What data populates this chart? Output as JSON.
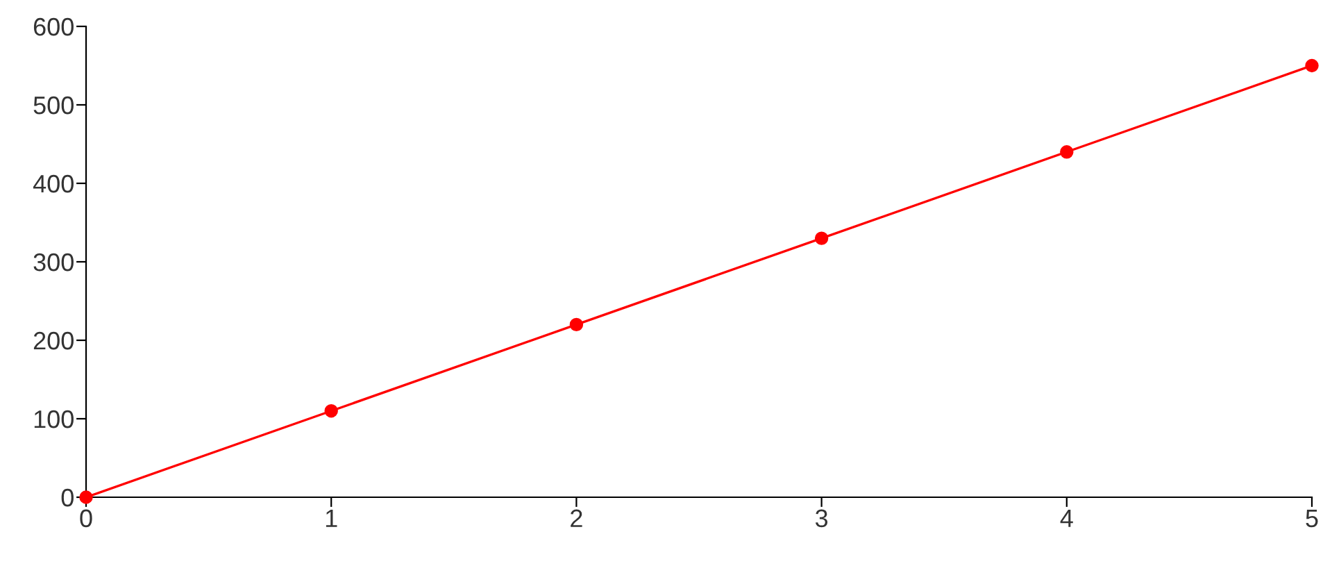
{
  "chart_data": {
    "type": "line",
    "x": [
      0,
      1,
      2,
      3,
      4,
      5
    ],
    "series": [
      {
        "color": "#ff0000",
        "values": [
          0,
          110,
          220,
          330,
          440,
          550
        ]
      }
    ],
    "xlim": [
      0,
      5
    ],
    "ylim": [
      0,
      600
    ],
    "xticks": [
      0,
      1,
      2,
      3,
      4,
      5
    ],
    "yticks": [
      0,
      100,
      200,
      300,
      400,
      500,
      600
    ],
    "marker": "circle",
    "line_style": "solid",
    "grid": false,
    "legend": false
  }
}
